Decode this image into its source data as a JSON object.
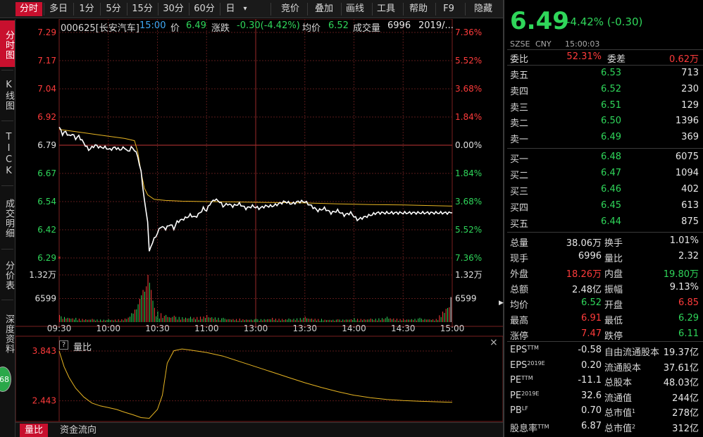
{
  "toolbar": {
    "tabs": [
      "分时",
      "多日",
      "1分",
      "5分",
      "15分",
      "30分",
      "60分",
      "日"
    ],
    "dropdown_glyph": "▾",
    "actions": [
      "竞价",
      "叠加",
      "画线",
      "工具",
      "帮助",
      "F9",
      "隐藏"
    ]
  },
  "leftnav": {
    "tabs": [
      "分时图",
      "K线图",
      "TICK",
      "成交明细",
      "分价表",
      "深度资料"
    ],
    "badge": "68"
  },
  "info": {
    "code_name": "000625[长安汽车]",
    "time": "15:00",
    "price_label": "价",
    "price": "6.49",
    "change_label": "涨跌",
    "change": "-0.30(-4.42%)",
    "avg_label": "均价",
    "avg": "6.52",
    "vol_label": "成交量",
    "vol": "6996",
    "date": "2019/..."
  },
  "chart_data": {
    "type": "line",
    "price_axis": {
      "labels": [
        "7.29",
        "7.17",
        "7.04",
        "6.92",
        "6.79",
        "6.67",
        "6.54",
        "6.42",
        "6.29"
      ],
      "ylim": [
        6.29,
        7.29
      ],
      "prev_close": 6.79
    },
    "pct_axis": {
      "labels": [
        "7.36%",
        "5.52%",
        "3.68%",
        "1.84%",
        "0.00%",
        "1.84%",
        "3.68%",
        "5.52%",
        "7.36%"
      ]
    },
    "x_ticks": [
      "09:30",
      "10:00",
      "10:30",
      "11:00",
      "13:00",
      "13:30",
      "14:00",
      "14:30",
      "15:00"
    ],
    "volume_axis": {
      "labels": [
        "1.32万",
        "6599"
      ],
      "right_labels": [
        "1.32万",
        "6599"
      ],
      "ymax": 13200
    },
    "price_series": [
      [
        0,
        6.87
      ],
      [
        2,
        6.84
      ],
      [
        4,
        6.85
      ],
      [
        6,
        6.83
      ],
      [
        8,
        6.84
      ],
      [
        10,
        6.82
      ],
      [
        12,
        6.83
      ],
      [
        14,
        6.81
      ],
      [
        16,
        6.79
      ],
      [
        18,
        6.77
      ],
      [
        20,
        6.78
      ],
      [
        22,
        6.79
      ],
      [
        25,
        6.78
      ],
      [
        28,
        6.78
      ],
      [
        31,
        6.77
      ],
      [
        34,
        6.78
      ],
      [
        37,
        6.77
      ],
      [
        40,
        6.78
      ],
      [
        42,
        6.76
      ],
      [
        44,
        6.78
      ],
      [
        46,
        6.77
      ],
      [
        48,
        6.74
      ],
      [
        50,
        6.67
      ],
      [
        52,
        6.55
      ],
      [
        54,
        6.45
      ],
      [
        55,
        6.32
      ],
      [
        57,
        6.36
      ],
      [
        60,
        6.4
      ],
      [
        62,
        6.43
      ],
      [
        65,
        6.42
      ],
      [
        68,
        6.44
      ],
      [
        70,
        6.42
      ],
      [
        72,
        6.45
      ],
      [
        75,
        6.46
      ],
      [
        78,
        6.47
      ],
      [
        80,
        6.48
      ],
      [
        83,
        6.47
      ],
      [
        86,
        6.49
      ],
      [
        88,
        6.51
      ],
      [
        90,
        6.5
      ],
      [
        92,
        6.53
      ],
      [
        95,
        6.55
      ],
      [
        98,
        6.54
      ],
      [
        100,
        6.52
      ],
      [
        103,
        6.53
      ],
      [
        106,
        6.52
      ],
      [
        110,
        6.53
      ],
      [
        114,
        6.51
      ],
      [
        118,
        6.52
      ],
      [
        122,
        6.51
      ],
      [
        126,
        6.52
      ],
      [
        130,
        6.52
      ],
      [
        134,
        6.53
      ],
      [
        138,
        6.54
      ],
      [
        142,
        6.53
      ],
      [
        146,
        6.54
      ],
      [
        150,
        6.54
      ],
      [
        154,
        6.52
      ],
      [
        158,
        6.5
      ],
      [
        162,
        6.51
      ],
      [
        166,
        6.49
      ],
      [
        170,
        6.5
      ],
      [
        174,
        6.48
      ],
      [
        178,
        6.49
      ],
      [
        182,
        6.46
      ],
      [
        186,
        6.47
      ],
      [
        190,
        6.48
      ],
      [
        194,
        6.49
      ],
      [
        198,
        6.49
      ],
      [
        202,
        6.49
      ],
      [
        206,
        6.49
      ],
      [
        210,
        6.49
      ],
      [
        214,
        6.49
      ],
      [
        218,
        6.49
      ],
      [
        222,
        6.49
      ],
      [
        226,
        6.49
      ],
      [
        230,
        6.49
      ],
      [
        234,
        6.49
      ],
      [
        238,
        6.49
      ],
      [
        240,
        6.49
      ]
    ],
    "avg_series": [
      [
        0,
        6.86
      ],
      [
        10,
        6.85
      ],
      [
        20,
        6.84
      ],
      [
        30,
        6.83
      ],
      [
        40,
        6.82
      ],
      [
        46,
        6.81
      ],
      [
        48,
        6.76
      ],
      [
        50,
        6.67
      ],
      [
        52,
        6.6
      ],
      [
        54,
        6.57
      ],
      [
        58,
        6.55
      ],
      [
        65,
        6.545
      ],
      [
        75,
        6.542
      ],
      [
        90,
        6.54
      ],
      [
        110,
        6.538
      ],
      [
        130,
        6.536
      ],
      [
        150,
        6.534
      ],
      [
        170,
        6.53
      ],
      [
        190,
        6.527
      ],
      [
        210,
        6.525
      ],
      [
        240,
        6.52
      ]
    ],
    "volume_series": {
      "note": "bars per minute index",
      "bars": [
        [
          0,
          2000,
          "r"
        ],
        [
          10,
          1200,
          "g"
        ],
        [
          20,
          900,
          "r"
        ],
        [
          30,
          800,
          "g"
        ],
        [
          40,
          1000,
          "r"
        ],
        [
          44,
          2500,
          "g"
        ],
        [
          46,
          3500,
          "r"
        ],
        [
          48,
          5000,
          "g"
        ],
        [
          49,
          6500,
          "r"
        ],
        [
          50,
          7500,
          "g"
        ],
        [
          51,
          9000,
          "r"
        ],
        [
          52,
          8500,
          "g"
        ],
        [
          53,
          10000,
          "r"
        ],
        [
          54,
          13200,
          "r"
        ],
        [
          55,
          11000,
          "g"
        ],
        [
          56,
          9000,
          "r"
        ],
        [
          57,
          6000,
          "g"
        ],
        [
          58,
          4000,
          "r"
        ],
        [
          60,
          3000,
          "g"
        ],
        [
          62,
          2500,
          "r"
        ],
        [
          65,
          2000,
          "g"
        ],
        [
          70,
          1800,
          "r"
        ],
        [
          80,
          1500,
          "g"
        ],
        [
          90,
          2000,
          "r"
        ],
        [
          100,
          1200,
          "g"
        ],
        [
          110,
          1000,
          "r"
        ],
        [
          120,
          900,
          "g"
        ],
        [
          130,
          1200,
          "r"
        ],
        [
          140,
          1000,
          "g"
        ],
        [
          150,
          1500,
          "r"
        ],
        [
          160,
          900,
          "g"
        ],
        [
          170,
          800,
          "r"
        ],
        [
          180,
          1100,
          "g"
        ],
        [
          190,
          1000,
          "r"
        ],
        [
          200,
          1500,
          "g"
        ],
        [
          210,
          900,
          "r"
        ],
        [
          220,
          1200,
          "g"
        ],
        [
          230,
          900,
          "r"
        ],
        [
          239,
          6996,
          "w"
        ]
      ]
    },
    "lower_panel": {
      "title": "量比",
      "help_glyph": "?",
      "y_labels": [
        "3.843",
        "2.443"
      ],
      "ylim": [
        1.9,
        4.1
      ],
      "series": [
        [
          0,
          3.843
        ],
        [
          3,
          3.4
        ],
        [
          6,
          3.1
        ],
        [
          10,
          2.8
        ],
        [
          15,
          2.55
        ],
        [
          20,
          2.38
        ],
        [
          25,
          2.3
        ],
        [
          30,
          2.25
        ],
        [
          35,
          2.2
        ],
        [
          40,
          2.12
        ],
        [
          45,
          2.05
        ],
        [
          50,
          1.97
        ],
        [
          55,
          1.95
        ],
        [
          60,
          2.2
        ],
        [
          63,
          2.6
        ],
        [
          66,
          3.5
        ],
        [
          70,
          3.85
        ],
        [
          75,
          3.9
        ],
        [
          80,
          3.87
        ],
        [
          90,
          3.8
        ],
        [
          100,
          3.7
        ],
        [
          110,
          3.55
        ],
        [
          120,
          3.4
        ],
        [
          130,
          3.25
        ],
        [
          140,
          3.1
        ],
        [
          150,
          2.95
        ],
        [
          160,
          2.82
        ],
        [
          170,
          2.7
        ],
        [
          180,
          2.6
        ],
        [
          190,
          2.53
        ],
        [
          200,
          2.48
        ],
        [
          210,
          2.45
        ],
        [
          220,
          2.43
        ],
        [
          240,
          2.4
        ]
      ]
    }
  },
  "bottom_tabs": [
    "量比",
    "资金流向"
  ],
  "close_glyph": "×",
  "quote": {
    "price": "6.49",
    "change": "-4.42% (-0.30)",
    "exchange": "SZSE",
    "currency": "CNY",
    "time": "15:00:03",
    "weibi_label": "委比",
    "weibi": "52.31%",
    "weicha_label": "委差",
    "weicha": "0.62万",
    "asks": [
      {
        "label": "卖五",
        "price": "6.53",
        "vol": "713"
      },
      {
        "label": "卖四",
        "price": "6.52",
        "vol": "230"
      },
      {
        "label": "卖三",
        "price": "6.51",
        "vol": "129"
      },
      {
        "label": "卖二",
        "price": "6.50",
        "vol": "1396"
      },
      {
        "label": "卖一",
        "price": "6.49",
        "vol": "369"
      }
    ],
    "bids": [
      {
        "label": "买一",
        "price": "6.48",
        "vol": "6075"
      },
      {
        "label": "买二",
        "price": "6.47",
        "vol": "1094"
      },
      {
        "label": "买三",
        "price": "6.46",
        "vol": "402"
      },
      {
        "label": "买四",
        "price": "6.45",
        "vol": "613"
      },
      {
        "label": "买五",
        "price": "6.44",
        "vol": "875"
      }
    ],
    "stats": [
      {
        "l1": "总量",
        "v1": "38.06万",
        "c1": "white",
        "l2": "换手",
        "v2": "1.01%",
        "c2": "white"
      },
      {
        "l1": "现手",
        "v1": "6996",
        "c1": "white",
        "l2": "量比",
        "v2": "2.32",
        "c2": "white"
      },
      {
        "l1": "外盘",
        "v1": "18.26万",
        "c1": "red",
        "l2": "内盘",
        "v2": "19.80万",
        "c2": "green"
      },
      {
        "l1": "总额",
        "v1": "2.48亿",
        "c1": "white",
        "l2": "振幅",
        "v2": "9.13%",
        "c2": "white"
      },
      {
        "l1": "均价",
        "v1": "6.52",
        "c1": "green",
        "l2": "开盘",
        "v2": "6.85",
        "c2": "red"
      },
      {
        "l1": "最高",
        "v1": "6.91",
        "c1": "red",
        "l2": "最低",
        "v2": "6.29",
        "c2": "green"
      },
      {
        "l1": "涨停",
        "v1": "7.47",
        "c1": "red",
        "l2": "跌停",
        "v2": "6.11",
        "c2": "green"
      }
    ],
    "expand_glyph": "▶",
    "fundamentals": [
      {
        "l1": "EPS",
        "s1": "TTM",
        "v1": "-0.58",
        "l2": "自由流通股本",
        "s2": "",
        "v2": "19.37亿"
      },
      {
        "l1": "EPS",
        "s1": "2019E",
        "v1": "0.20",
        "l2": "流通股本",
        "s2": "",
        "v2": "37.61亿"
      },
      {
        "l1": "PE",
        "s1": "TTM",
        "v1": "-11.1",
        "l2": "总股本",
        "s2": "",
        "v2": "48.03亿"
      },
      {
        "l1": "PE",
        "s1": "2019E",
        "v1": "32.6",
        "l2": "流通值",
        "s2": "",
        "v2": "244亿"
      },
      {
        "l1": "PB",
        "s1": "LF",
        "v1": "0.70",
        "l2": "总市值",
        "s2": "1",
        "v2": "278亿"
      },
      {
        "l1": "股息率",
        "s1": "TTM",
        "v1": "6.87",
        "l2": "总市值",
        "s2": "2",
        "v2": "312亿"
      }
    ]
  },
  "colors": {
    "up": "#ff3b3b",
    "down": "#2fd65a",
    "avg_line": "#e6b422",
    "grid": "#5a1a1a"
  }
}
